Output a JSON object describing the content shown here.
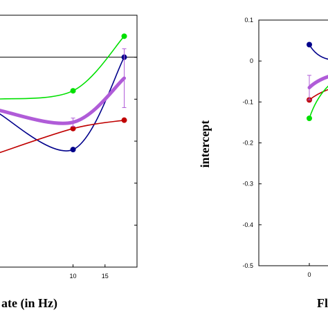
{
  "chart_data": [
    {
      "type": "line",
      "title": "",
      "xlabel": "ate (in Hz)",
      "ylabel": "",
      "xlim": [
        -2.5,
        20
      ],
      "ylim": [
        -0.5,
        0.1
      ],
      "x_ticks": [
        "10",
        "15"
      ],
      "grid": false,
      "series": [
        {
          "color": "#00e000",
          "x": [
            -2,
            10,
            18
          ],
          "y": [
            -0.1,
            -0.08,
            0.05
          ]
        },
        {
          "color": "#00008b",
          "x": [
            -2,
            10,
            18
          ],
          "y": [
            -0.13,
            -0.22,
            0.0
          ]
        },
        {
          "color": "#c00000",
          "x": [
            -2,
            10,
            18
          ],
          "y": [
            -0.23,
            -0.17,
            -0.15
          ]
        },
        {
          "color": "#b05cd8",
          "x": [
            -2,
            10,
            18
          ],
          "y": [
            -0.125,
            -0.155,
            -0.05
          ],
          "error": [
            0,
            0.01,
            0.07
          ]
        }
      ]
    },
    {
      "type": "line",
      "title": "",
      "xlabel": "Fl",
      "ylabel": "intercept",
      "xlim": [
        -5,
        5
      ],
      "ylim": [
        -0.5,
        0.1
      ],
      "x_ticks": [
        "0"
      ],
      "y_ticks": [
        "0.1",
        "0",
        "-0.1",
        "-0.2",
        "-0.3",
        "-0.4",
        "-0.5"
      ],
      "grid": false,
      "series": [
        {
          "color": "#00008b",
          "x": [
            0
          ],
          "y": [
            0.04
          ]
        },
        {
          "color": "#c00000",
          "x": [
            0
          ],
          "y": [
            -0.095
          ]
        },
        {
          "color": "#00e000",
          "x": [
            0
          ],
          "y": [
            -0.14
          ]
        },
        {
          "color": "#b05cd8",
          "x": [
            0
          ],
          "y": [
            -0.065
          ],
          "error": [
            0.03
          ]
        }
      ]
    }
  ]
}
